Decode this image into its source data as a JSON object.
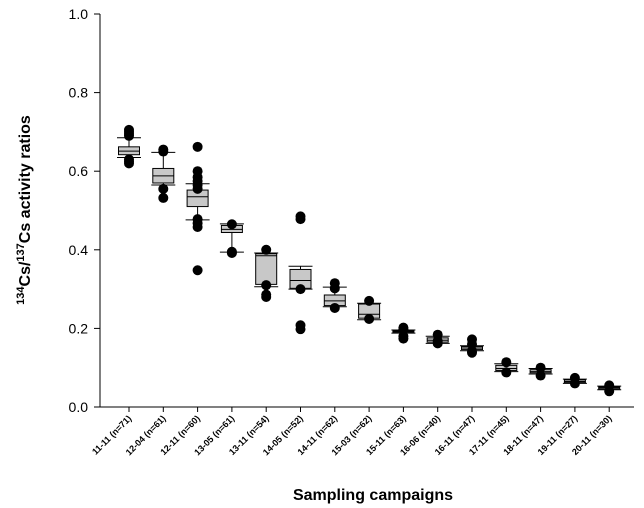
{
  "chart_data": {
    "type": "box",
    "xlabel": "Sampling campaigns",
    "ylabel": {
      "prefix_sup": "134",
      "prefix": "Cs/",
      "mid_sup": "137",
      "suffix": "Cs activity ratios"
    },
    "ylim": [
      0.0,
      1.0
    ],
    "yticks": [
      "0.0",
      "0.2",
      "0.4",
      "0.6",
      "0.8",
      "1.0"
    ],
    "grid": false,
    "colors": {
      "box_fill": "#c8c8c8",
      "outlier": "#000000",
      "line": "#000000"
    },
    "categories": [
      "11-11 (n=71)",
      "12-04 (n=61)",
      "12-11 (n=60)",
      "13-05 (n=61)",
      "13-11 (n=54)",
      "14-05 (n=52)",
      "14-11 (n=62)",
      "15-03 (n=62)",
      "15-11 (n=63)",
      "16-06 (n=40)",
      "16-11 (n=47)",
      "17-11 (n=45)",
      "18-11 (n=47)",
      "19-11 (n=27)",
      "20-11 (n=30)"
    ],
    "boxes": [
      {
        "whisker_low": 0.635,
        "q1": 0.642,
        "median": 0.651,
        "q3": 0.662,
        "whisker_high": 0.685,
        "outliers": [
          0.62,
          0.625,
          0.63,
          0.69,
          0.695,
          0.7,
          0.705
        ]
      },
      {
        "whisker_low": 0.565,
        "q1": 0.57,
        "median": 0.588,
        "q3": 0.607,
        "whisker_high": 0.648,
        "outliers": [
          0.532,
          0.555,
          0.65,
          0.655
        ]
      },
      {
        "whisker_low": 0.476,
        "q1": 0.51,
        "median": 0.535,
        "q3": 0.552,
        "whisker_high": 0.568,
        "outliers": [
          0.348,
          0.458,
          0.468,
          0.478,
          0.555,
          0.565,
          0.575,
          0.585,
          0.6,
          0.662
        ]
      },
      {
        "whisker_low": 0.394,
        "q1": 0.444,
        "median": 0.452,
        "q3": 0.462,
        "whisker_high": 0.466,
        "outliers": [
          0.392,
          0.395,
          0.465
        ]
      },
      {
        "whisker_low": 0.306,
        "q1": 0.312,
        "median": 0.385,
        "q3": 0.39,
        "whisker_high": 0.392,
        "outliers": [
          0.28,
          0.286,
          0.31,
          0.4
        ]
      },
      {
        "whisker_low": 0.3,
        "q1": 0.302,
        "median": 0.322,
        "q3": 0.35,
        "whisker_high": 0.358,
        "outliers": [
          0.198,
          0.208,
          0.3,
          0.478,
          0.485
        ]
      },
      {
        "whisker_low": 0.255,
        "q1": 0.258,
        "median": 0.27,
        "q3": 0.285,
        "whisker_high": 0.305,
        "outliers": [
          0.252,
          0.302,
          0.315
        ]
      },
      {
        "whisker_low": 0.222,
        "q1": 0.226,
        "median": 0.236,
        "q3": 0.262,
        "whisker_high": 0.264,
        "outliers": [
          0.224,
          0.27
        ]
      },
      {
        "whisker_low": 0.188,
        "q1": 0.19,
        "median": 0.192,
        "q3": 0.194,
        "whisker_high": 0.196,
        "outliers": [
          0.174,
          0.18,
          0.198,
          0.202
        ]
      },
      {
        "whisker_low": 0.162,
        "q1": 0.165,
        "median": 0.17,
        "q3": 0.176,
        "whisker_high": 0.18,
        "outliers": [
          0.162,
          0.168,
          0.184
        ]
      },
      {
        "whisker_low": 0.143,
        "q1": 0.146,
        "median": 0.15,
        "q3": 0.154,
        "whisker_high": 0.156,
        "outliers": [
          0.138,
          0.142,
          0.16,
          0.172
        ]
      },
      {
        "whisker_low": 0.09,
        "q1": 0.093,
        "median": 0.098,
        "q3": 0.106,
        "whisker_high": 0.11,
        "outliers": [
          0.088,
          0.114
        ]
      },
      {
        "whisker_low": 0.084,
        "q1": 0.087,
        "median": 0.09,
        "q3": 0.095,
        "whisker_high": 0.098,
        "outliers": [
          0.08,
          0.1
        ]
      },
      {
        "whisker_low": 0.06,
        "q1": 0.062,
        "median": 0.065,
        "q3": 0.069,
        "whisker_high": 0.071,
        "outliers": [
          0.06,
          0.074
        ]
      },
      {
        "whisker_low": 0.044,
        "q1": 0.046,
        "median": 0.049,
        "q3": 0.051,
        "whisker_high": 0.053,
        "outliers": [
          0.04,
          0.055
        ]
      }
    ]
  }
}
